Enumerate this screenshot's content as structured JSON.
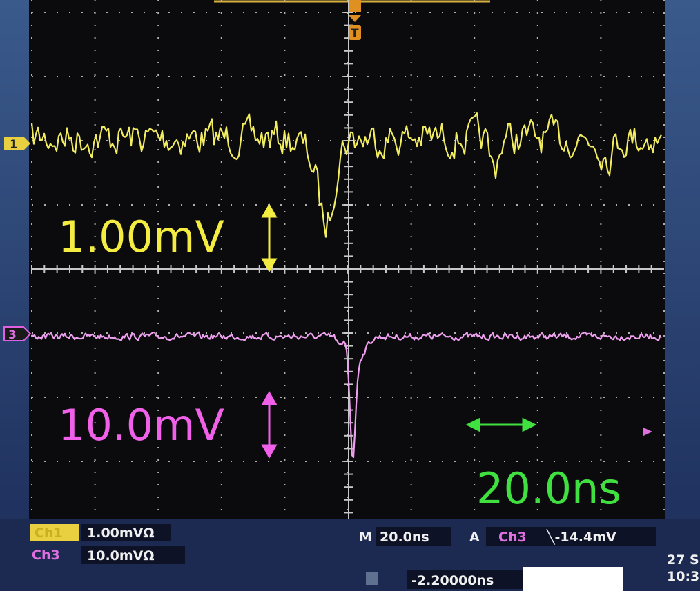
{
  "channel_markers": {
    "ch1": "1",
    "ch3": "3",
    "trigger": "T"
  },
  "annotations": {
    "ch1_scale": "1.00mV",
    "ch3_scale": "10.0mV",
    "time_scale": "20.0ns"
  },
  "status": {
    "ch1_label": "Ch1",
    "ch1_scale": "1.00mVΩ",
    "ch3_label": "Ch3",
    "ch3_scale": "10.0mVΩ",
    "main_label": "M",
    "main_timebase": "20.0ns",
    "trigger_label": "A",
    "trigger_source": "Ch3",
    "trigger_level": "╲-14.4mV",
    "position": "-2.20000ns",
    "date": "27 S",
    "time": "10:3"
  }
}
